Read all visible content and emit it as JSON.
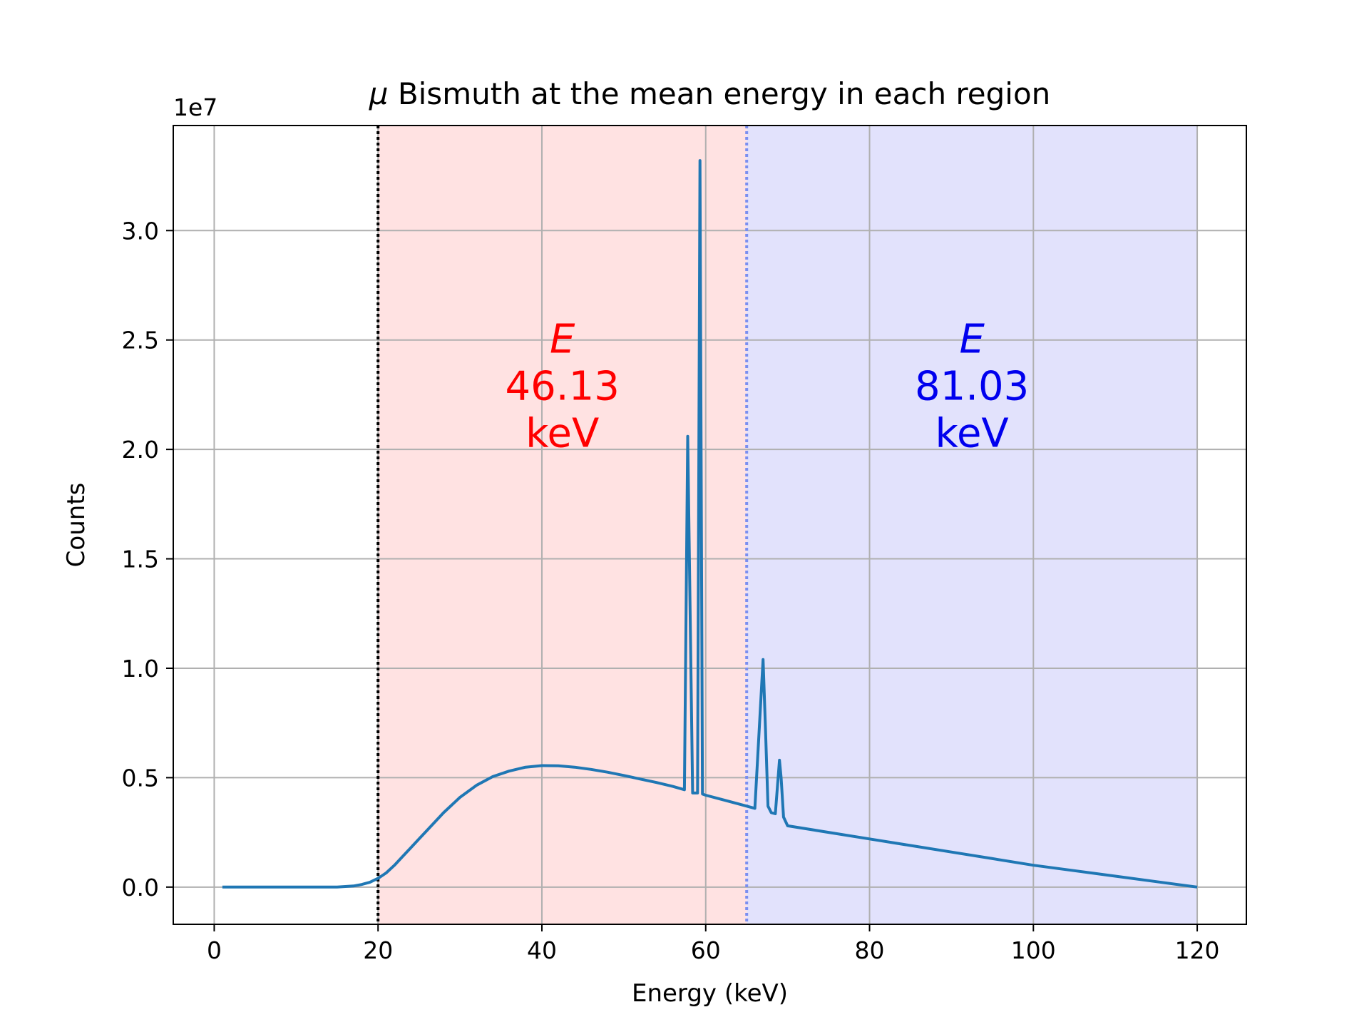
{
  "chart_data": {
    "type": "line",
    "title_symbol": "μ",
    "title": "Bismuth at the mean energy in each region",
    "xlabel": "Energy (keV)",
    "ylabel": "Counts",
    "y_offset_label": "1e7",
    "xlim": [
      -5,
      126
    ],
    "ylim": [
      -0.17,
      3.48
    ],
    "y_scale_factor": 10000000,
    "x_ticks": [
      0,
      20,
      40,
      60,
      80,
      100,
      120
    ],
    "x_tick_labels": [
      "0",
      "20",
      "40",
      "60",
      "80",
      "100",
      "120"
    ],
    "y_ticks": [
      0.0,
      0.5,
      1.0,
      1.5,
      2.0,
      2.5,
      3.0
    ],
    "y_tick_labels": [
      "0.0",
      "0.5",
      "1.0",
      "1.5",
      "2.0",
      "2.5",
      "3.0"
    ],
    "grid": true,
    "regions": [
      {
        "name": "low",
        "x_start": 20,
        "x_end": 65,
        "color": "#ffe2e2"
      },
      {
        "name": "high",
        "x_start": 65,
        "x_end": 120,
        "color": "#e2e2fc"
      }
    ],
    "threshold_lines": [
      {
        "x": 20,
        "color": "#000000",
        "style": "dotted"
      },
      {
        "x": 65,
        "color": "#7b8ff0",
        "style": "dotted"
      }
    ],
    "annotations": [
      {
        "symbol": "E",
        "value": "46.13",
        "unit": "keV",
        "x": 42.5,
        "y": 2.5,
        "color": "#ff0000"
      },
      {
        "symbol": "E",
        "value": "81.03",
        "unit": "keV",
        "x": 92.5,
        "y": 2.5,
        "color": "#0000ee"
      }
    ],
    "series": [
      {
        "color": "#1f77b4",
        "x": [
          1,
          5,
          10,
          15,
          17,
          18,
          19,
          20,
          21,
          22,
          23,
          24,
          25,
          26,
          28,
          30,
          32,
          34,
          36,
          38,
          40,
          42,
          44,
          46,
          48,
          50,
          52,
          54,
          56,
          57.4,
          57.8,
          58.4,
          59.0,
          59.3,
          59.6,
          60.0,
          62,
          64,
          66,
          67,
          67.3,
          67.6,
          68,
          68.5,
          69,
          69.2,
          69.5,
          70,
          75,
          80,
          85,
          90,
          95,
          100,
          105,
          110,
          115,
          120
        ],
        "y": [
          0.0,
          0.0,
          0.0,
          0.0,
          0.005,
          0.012,
          0.022,
          0.04,
          0.065,
          0.1,
          0.14,
          0.18,
          0.22,
          0.26,
          0.34,
          0.41,
          0.465,
          0.505,
          0.53,
          0.548,
          0.555,
          0.554,
          0.548,
          0.538,
          0.525,
          0.51,
          0.494,
          0.478,
          0.46,
          0.445,
          2.06,
          0.43,
          0.43,
          3.32,
          0.425,
          0.42,
          0.4,
          0.38,
          0.36,
          1.04,
          0.72,
          0.37,
          0.34,
          0.335,
          0.58,
          0.5,
          0.32,
          0.28,
          0.25,
          0.22,
          0.19,
          0.16,
          0.13,
          0.1,
          0.075,
          0.05,
          0.025,
          0.0
        ]
      }
    ]
  }
}
